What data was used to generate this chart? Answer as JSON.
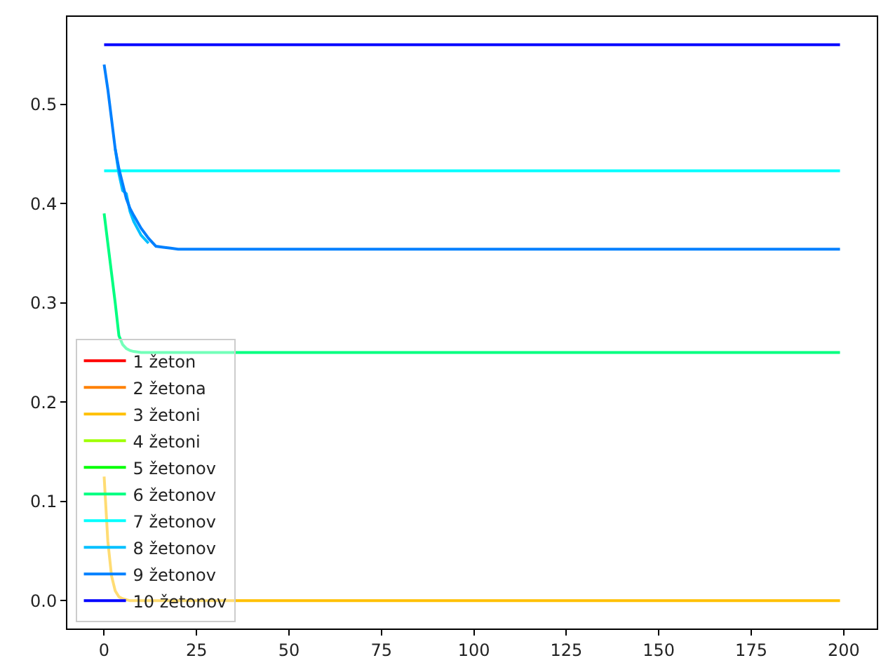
{
  "chart_data": {
    "type": "line",
    "x": [
      0,
      1,
      2,
      3,
      4,
      5,
      6,
      7,
      8,
      10,
      12,
      14,
      16,
      18,
      20,
      25,
      199
    ],
    "series": [
      {
        "name": "1 žeton",
        "color": "#ff0000",
        "values": [
          null,
          null,
          null,
          null,
          null,
          null,
          null,
          null,
          null,
          null,
          null,
          null,
          null,
          null,
          null,
          null,
          null
        ]
      },
      {
        "name": "2 žetona",
        "color": "#ff8000",
        "values": [
          null,
          null,
          null,
          null,
          null,
          null,
          null,
          null,
          null,
          null,
          null,
          null,
          null,
          null,
          null,
          null,
          null
        ]
      },
      {
        "name": "3 žetoni",
        "color": "#ffc000",
        "values": [
          0.125,
          0.06,
          0.025,
          0.01,
          0.004,
          0.002,
          0.001,
          0,
          0,
          0,
          0,
          0,
          0,
          0,
          0,
          0,
          0
        ]
      },
      {
        "name": "4 žetoni",
        "color": "#9fff00",
        "values": [
          null,
          null,
          null,
          null,
          null,
          null,
          null,
          null,
          null,
          null,
          null,
          null,
          null,
          null,
          null,
          null,
          null
        ]
      },
      {
        "name": "5 žetonov",
        "color": "#00ff00",
        "values": [
          null,
          null,
          null,
          null,
          null,
          null,
          null,
          null,
          null,
          null,
          null,
          null,
          null,
          null,
          null,
          null,
          null
        ]
      },
      {
        "name": "6 žetonov",
        "color": "#00ff80",
        "values": [
          0.39,
          0.36,
          0.33,
          0.3,
          0.267,
          0.258,
          0.254,
          0.252,
          0.251,
          0.25,
          0.25,
          0.25,
          0.25,
          0.25,
          0.25,
          0.25,
          0.25
        ]
      },
      {
        "name": "7 žetonov",
        "color": "#00ffff",
        "values": [
          0.433,
          0.433,
          0.433,
          0.433,
          0.433,
          0.433,
          0.433,
          0.433,
          0.433,
          0.433,
          0.433,
          0.433,
          0.433,
          0.433,
          0.433,
          0.433,
          0.433
        ]
      },
      {
        "name": "8 žetonov",
        "color": "#00c0ff",
        "values": [
          null,
          null,
          null,
          0.455,
          0.43,
          0.413,
          0.41,
          0.392,
          0.382,
          0.368,
          0.36,
          null,
          null,
          null,
          null,
          null,
          null
        ]
      },
      {
        "name": "9 žetonov",
        "color": "#0080ff",
        "values": [
          0.54,
          0.515,
          0.485,
          0.455,
          0.435,
          0.42,
          0.405,
          0.395,
          0.388,
          0.375,
          0.365,
          0.357,
          0.356,
          0.355,
          0.354,
          0.354,
          0.354
        ]
      },
      {
        "name": "10 žetonov",
        "color": "#0000ff",
        "values": [
          0.56,
          0.56,
          0.56,
          0.56,
          0.56,
          0.56,
          0.56,
          0.56,
          0.56,
          0.56,
          0.56,
          0.56,
          0.56,
          0.56,
          0.56,
          0.56,
          0.56
        ]
      }
    ],
    "xlim": [
      -9.95,
      208.95
    ],
    "ylim": [
      -0.028,
      0.588
    ],
    "xticks": [
      0,
      25,
      50,
      75,
      100,
      125,
      150,
      175,
      200
    ],
    "yticks": [
      {
        "value": 0,
        "label": "0.0"
      },
      {
        "value": 0.1,
        "label": "0.1"
      },
      {
        "value": 0.2,
        "label": "0.2"
      },
      {
        "value": 0.3,
        "label": "0.3"
      },
      {
        "value": 0.4,
        "label": "0.4"
      },
      {
        "value": 0.5,
        "label": "0.5"
      }
    ],
    "grid": false,
    "legend": "bottom left",
    "marker": "none",
    "line_style": "solid"
  }
}
